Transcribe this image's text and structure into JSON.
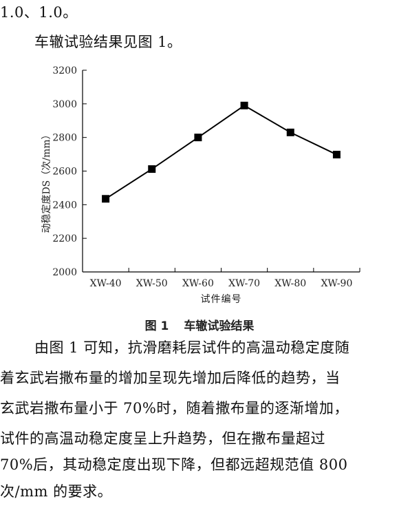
{
  "text_top": "1.0、1.0。",
  "intro": "车辙试验结果见图 1。",
  "figure": {
    "number": "图 1",
    "title": "车辙试验结果"
  },
  "paragraph_lines": [
    "由图 1 可知，抗滑磨耗层试件的高温动稳定度随",
    "着玄武岩撒布量的增加呈现先增加后降低的趋势，当",
    "玄武岩撒布量小于 70%时，随着撒布量的逐渐增加，",
    "试件的高温动稳定度呈上升趋势，但在撒布量超过",
    "70%后，其动稳定度出现下降，但都远超规范值 800",
    "次/mm 的要求。"
  ],
  "chart_data": {
    "type": "line",
    "categories": [
      "XW-40",
      "XW-50",
      "XW-60",
      "XW-70",
      "XW-80",
      "XW-90"
    ],
    "values": [
      2435,
      2612,
      2800,
      2990,
      2830,
      2698
    ],
    "xlabel": "试件编号",
    "ylabel": "动稳定度DS（次/mm）",
    "ylim": [
      2000,
      3200
    ],
    "yticks": [
      2000,
      2200,
      2400,
      2600,
      2800,
      3000,
      3200
    ],
    "marker": "square",
    "grid": false,
    "line_color": "#000000"
  }
}
